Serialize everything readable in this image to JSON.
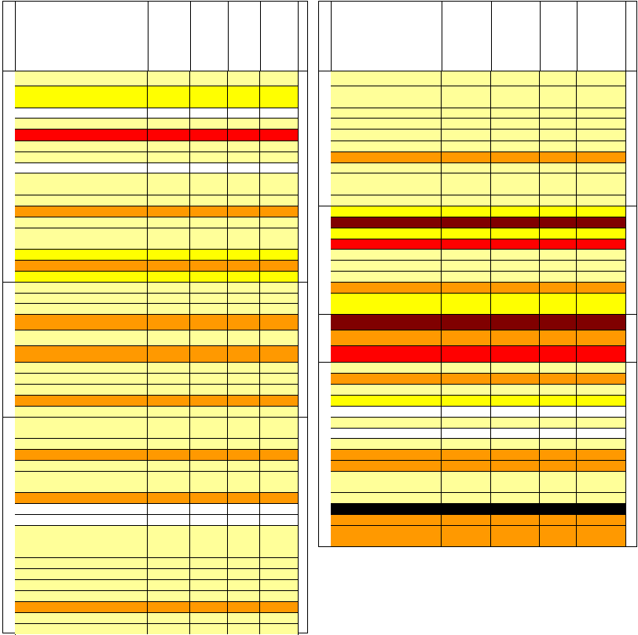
{
  "colors": {
    "y": "#ffff99",
    "Y": "#ffff00",
    "w": "#ffffff",
    "o": "#ff9900",
    "r": "#ff0000",
    "m": "#800000",
    "k": "#000000"
  },
  "left_table": {
    "columns": 5,
    "rows": [
      {
        "fill": "y"
      },
      {
        "fill": "Y"
      },
      {
        "fill": "w"
      },
      {
        "fill": "y"
      },
      {
        "fill": "r"
      },
      {
        "fill": "y"
      },
      {
        "fill": "y"
      },
      {
        "fill": "w"
      },
      {
        "fill": "y"
      },
      {
        "fill": "y"
      },
      {
        "fill": "o"
      },
      {
        "fill": "y"
      },
      {
        "fill": "y"
      },
      {
        "fill": "Y"
      },
      {
        "fill": "o"
      },
      {
        "fill": "Y"
      },
      {
        "fill": "y"
      },
      {
        "fill": "y"
      },
      {
        "fill": "y"
      },
      {
        "fill": "o"
      },
      {
        "fill": "y"
      },
      {
        "fill": "o"
      },
      {
        "fill": "y"
      },
      {
        "fill": "y"
      },
      {
        "fill": "y"
      },
      {
        "fill": "o"
      },
      {
        "fill": "y"
      },
      {
        "fill": "y"
      },
      {
        "fill": "y"
      },
      {
        "fill": "o"
      },
      {
        "fill": "y"
      },
      {
        "fill": "y"
      },
      {
        "fill": "o"
      },
      {
        "fill": "w"
      },
      {
        "fill": "w"
      },
      {
        "fill": "y"
      },
      {
        "fill": "y"
      },
      {
        "fill": "y"
      },
      {
        "fill": "y"
      },
      {
        "fill": "y"
      },
      {
        "fill": "o"
      },
      {
        "fill": "y"
      },
      {
        "fill": "y"
      }
    ]
  },
  "right_table": {
    "columns": 5,
    "rows": [
      {
        "fill": "y"
      },
      {
        "fill": "y"
      },
      {
        "fill": "y"
      },
      {
        "fill": "y"
      },
      {
        "fill": "y"
      },
      {
        "fill": "y"
      },
      {
        "fill": "o"
      },
      {
        "fill": "y"
      },
      {
        "fill": "y"
      },
      {
        "fill": "y"
      },
      {
        "fill": "Y"
      },
      {
        "fill": "m"
      },
      {
        "fill": "Y"
      },
      {
        "fill": "r"
      },
      {
        "fill": "y"
      },
      {
        "fill": "y"
      },
      {
        "fill": "y"
      },
      {
        "fill": "o"
      },
      {
        "fill": "Y"
      },
      {
        "fill": "m"
      },
      {
        "fill": "o"
      },
      {
        "fill": "r"
      },
      {
        "fill": "y"
      },
      {
        "fill": "o"
      },
      {
        "fill": "y"
      },
      {
        "fill": "Y"
      },
      {
        "fill": "w"
      },
      {
        "fill": "y"
      },
      {
        "fill": "w"
      },
      {
        "fill": "y"
      },
      {
        "fill": "o"
      },
      {
        "fill": "o"
      },
      {
        "fill": "y"
      },
      {
        "fill": "y"
      },
      {
        "fill": "k"
      },
      {
        "fill": "o"
      },
      {
        "fill": "o"
      },
      {
        "fill": "y"
      }
    ]
  }
}
